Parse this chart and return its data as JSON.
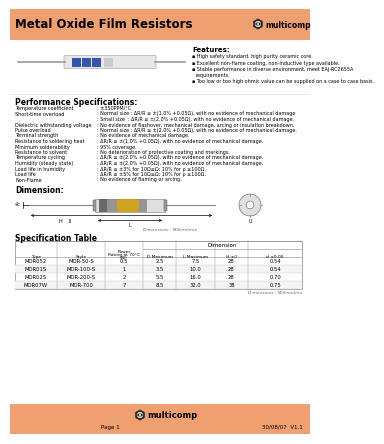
{
  "title": "Metal Oxide Film Resistors",
  "header_bg": "#F0A070",
  "page_bg": "#FFFFFF",
  "features_title": "Features:",
  "features": [
    "High safety standard, high purity ceramic core.",
    "Excellent non-flame coating, non-inductive type available.",
    "Stable performance in diverse environment, meet EAJ-RC2655A\nrequirements.",
    "Too low or too high ohmic value can be supplied on a case to case basis."
  ],
  "perf_title": "Performance Specifications:",
  "perf_specs": [
    [
      "Temperature coefficient",
      "±350PPM/°C",
      false
    ],
    [
      "Short-time overload",
      "Normal size : ΔR/R ≤ ±(1.0% +0.05Ω), with no evidence of mechanical damage",
      true
    ],
    [
      "",
      "Small size  : ΔR/R ≤ ±(2.0% +0.05Ω), with no evidence of mechanical damage.",
      false
    ],
    [
      "Dielectric withstanding voltage",
      "No evidence of flashover, mechanical damage, arcing or insulation breakdown.",
      false
    ],
    [
      "Pulse overload",
      "Normal size : ΔR/R ≤ ±(2.0% +0.05Ω), with no evidence of mechanical damage.",
      false
    ],
    [
      "Terminal strength",
      "No evidence of mechanical damage.",
      false
    ],
    [
      "Resistance to soldering heat",
      "ΔR/R ≤ ±(1.0% +0.05Ω), with no evidence of mechanical damage.",
      false
    ],
    [
      "Minimum solderability",
      "95% coverage.",
      false
    ],
    [
      "Resistance to solvent",
      "No deterioration of protective coating and markings.",
      false
    ],
    [
      "Temperature cycling",
      "ΔR/R ≤ ±(2.0% +0.05Ω), with no evidence of mechanical damage.",
      false
    ],
    [
      "Humidity (steady state)",
      "ΔR/R ≤ ±(2.0% +0.05Ω), with no evidence of mechanical damage.",
      false
    ],
    [
      "Load life in humidity",
      "ΔR/R ≤ ±3% for 10Ω≤Ω; 10% for ρ ≥100Ω.",
      false
    ],
    [
      "Load life",
      "ΔR/R ≤ ±5% for 10Ω≤Ω; 10% for ρ ≥100Ω.",
      false
    ],
    [
      "Non-Flame",
      "No evidence of flaming or arcing.",
      false
    ]
  ],
  "dim_title": "Dimension:",
  "dim_note": "Dimensions : Millimetres",
  "spec_title": "Specification Table",
  "spec_rows": [
    [
      "MOR052",
      "MOR-50-S",
      "0.5",
      "2.5",
      "7.5",
      "28",
      "0.54"
    ],
    [
      "MOR01S",
      "MOR-100-S",
      "1",
      "3.5",
      "10.0",
      "28",
      "0.54"
    ],
    [
      "MOR02S",
      "MOR-200-S",
      "2",
      "5.5",
      "16.0",
      "28",
      "0.70"
    ],
    [
      "MOR07W",
      "MOR-700",
      "7",
      "8.5",
      "32.0",
      "38",
      "0.75"
    ]
  ],
  "spec_note": "Dimensions : Millimetres",
  "footer_text": "Page 1",
  "footer_date": "30/08/07  V1.1",
  "orange": "#F0A070"
}
